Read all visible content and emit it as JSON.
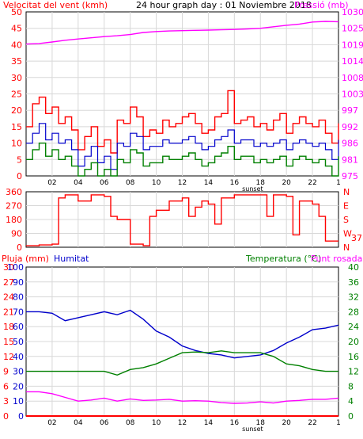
{
  "title": "24 hour graph day : 01 Noviembre 2018",
  "x_ticks": [
    "02",
    "04",
    "06",
    "08",
    "10",
    "12",
    "14",
    "16",
    "18",
    "20",
    "22",
    "1"
  ],
  "sunset_label": "sunset",
  "colors": {
    "wind_gust": "#ff0000",
    "wind_avg": "#0000cc",
    "wind_min": "#008000",
    "pressure": "#ff00ff",
    "direction": "#ff0000",
    "humidity": "#0000cc",
    "temperature": "#008000",
    "dewpoint": "#ff00ff",
    "rain": "#ff0000",
    "grid": "#d8d8d8",
    "left_axis_red": "#ff0000",
    "left_axis_blue": "#0000cc",
    "right_axis_magenta": "#ff00ff",
    "right_axis_green": "#008000"
  },
  "chart_data": [
    {
      "type": "line",
      "panel": "wind_pressure",
      "left_label": "Velocitat del vent (kmh)",
      "right_label": "Pressió (mb)",
      "ylim_left": [
        0,
        50
      ],
      "left_ticks": [
        "0",
        "5",
        "10",
        "15",
        "20",
        "25",
        "30",
        "35",
        "40",
        "45",
        "50"
      ],
      "ylim_right": [
        975,
        1030
      ],
      "right_ticks": [
        "975",
        "981",
        "986",
        "992",
        "997",
        "1003",
        "1008",
        "1014",
        "1019",
        "1025",
        "1030"
      ],
      "x_hours": [
        0,
        24
      ],
      "series": [
        {
          "key": "pressure",
          "axis": "right",
          "x": [
            0,
            1,
            2,
            3,
            4,
            5,
            6,
            7,
            8,
            9,
            10,
            11,
            12,
            13,
            14,
            15,
            16,
            17,
            18,
            19,
            20,
            21,
            22,
            23,
            24
          ],
          "values": [
            1019.2,
            1019.4,
            1019.9,
            1020.5,
            1020.9,
            1021.3,
            1021.7,
            1022.0,
            1022.4,
            1023.1,
            1023.4,
            1023.6,
            1023.7,
            1023.8,
            1023.9,
            1024.0,
            1024.1,
            1024.3,
            1024.5,
            1025.0,
            1025.5,
            1025.9,
            1026.6,
            1026.8,
            1026.7
          ]
        },
        {
          "key": "wind_gust",
          "axis": "left",
          "x": [
            0,
            0.5,
            1,
            1.5,
            2,
            2.5,
            3,
            3.5,
            4,
            4.5,
            5,
            5.5,
            6,
            6.5,
            7,
            7.5,
            8,
            8.5,
            9,
            9.5,
            10,
            10.5,
            11,
            11.5,
            12,
            12.5,
            13,
            13.5,
            14,
            14.5,
            15,
            15.5,
            16,
            16.5,
            17,
            17.5,
            18,
            18.5,
            19,
            19.5,
            20,
            20.5,
            21,
            21.5,
            22,
            22.5,
            23,
            23.5,
            24
          ],
          "values": [
            15,
            22,
            24,
            19,
            21,
            16,
            18,
            14,
            8,
            12,
            15,
            9,
            11,
            7,
            17,
            16,
            21,
            18,
            12,
            14,
            13,
            17,
            15,
            16,
            18,
            19,
            16,
            13,
            14,
            18,
            19,
            26,
            16,
            17,
            18,
            15,
            16,
            14,
            17,
            19,
            13,
            16,
            18,
            16,
            15,
            17,
            13,
            10,
            16
          ]
        },
        {
          "key": "wind_avg",
          "axis": "left",
          "x": [
            0,
            0.5,
            1,
            1.5,
            2,
            2.5,
            3,
            3.5,
            4,
            4.5,
            5,
            5.5,
            6,
            6.5,
            7,
            7.5,
            8,
            8.5,
            9,
            9.5,
            10,
            10.5,
            11,
            11.5,
            12,
            12.5,
            13,
            13.5,
            14,
            14.5,
            15,
            15.5,
            16,
            16.5,
            17,
            17.5,
            18,
            18.5,
            19,
            19.5,
            20,
            20.5,
            21,
            21.5,
            22,
            22.5,
            23,
            23.5,
            24
          ],
          "values": [
            10,
            13,
            16,
            11,
            13,
            10,
            11,
            8,
            3,
            6,
            9,
            4,
            6,
            2,
            10,
            9,
            13,
            12,
            8,
            9,
            9,
            11,
            10,
            10,
            11,
            12,
            10,
            8,
            9,
            11,
            12,
            14,
            10,
            11,
            11,
            9,
            10,
            9,
            10,
            11,
            8,
            10,
            11,
            10,
            9,
            10,
            8,
            5,
            11
          ]
        },
        {
          "key": "wind_min",
          "axis": "left",
          "x": [
            0,
            0.5,
            1,
            1.5,
            2,
            2.5,
            3,
            3.5,
            4,
            4.5,
            5,
            5.5,
            6,
            6.5,
            7,
            7.5,
            8,
            8.5,
            9,
            9.5,
            10,
            10.5,
            11,
            11.5,
            12,
            12.5,
            13,
            13.5,
            14,
            14.5,
            15,
            15.5,
            16,
            16.5,
            17,
            17.5,
            18,
            18.5,
            19,
            19.5,
            20,
            20.5,
            21,
            21.5,
            22,
            22.5,
            23,
            23.5,
            24
          ],
          "values": [
            5,
            8,
            10,
            6,
            8,
            5,
            6,
            3,
            0,
            2,
            4,
            0,
            2,
            0,
            5,
            4,
            8,
            7,
            3,
            4,
            4,
            6,
            5,
            5,
            6,
            7,
            5,
            3,
            4,
            6,
            7,
            9,
            5,
            6,
            6,
            4,
            5,
            4,
            5,
            6,
            3,
            5,
            6,
            5,
            4,
            5,
            3,
            0,
            6
          ]
        }
      ]
    },
    {
      "type": "line",
      "panel": "direction",
      "left_ticks": [
        "0",
        "90",
        "180",
        "270",
        "360"
      ],
      "ylim_left": [
        0,
        360
      ],
      "right_ticks": [
        "N",
        "W",
        "S",
        "E",
        "N"
      ],
      "current_value": "37",
      "series": [
        {
          "key": "direction",
          "axis": "left",
          "x": [
            0,
            1,
            2,
            2.5,
            3,
            4,
            5,
            6,
            6.5,
            7,
            8,
            9,
            9.5,
            10,
            11,
            12,
            12.5,
            13,
            13.5,
            14,
            14.5,
            15,
            16,
            17,
            18,
            18.5,
            19,
            20,
            20.5,
            21,
            22,
            22.5,
            23,
            24
          ],
          "values": [
            10,
            15,
            20,
            320,
            340,
            300,
            340,
            330,
            200,
            180,
            20,
            10,
            200,
            240,
            300,
            320,
            200,
            260,
            300,
            280,
            150,
            320,
            340,
            340,
            340,
            200,
            340,
            330,
            80,
            300,
            280,
            200,
            40,
            40
          ]
        }
      ]
    },
    {
      "type": "line",
      "panel": "rain_humidity_temp",
      "left_label_rain": "Pluja (mm)",
      "left_label_hum": "Humitat",
      "right_label_temp": "Temperatura (°C)",
      "right_label_dew": "Punt rosada",
      "rain_ticks": [
        "0",
        "3",
        "6",
        "9",
        "12",
        "15",
        "18",
        "21",
        "24",
        "27",
        "30"
      ],
      "humidity_ticks": [
        "0",
        "10",
        "20",
        "30",
        "40",
        "50",
        "60",
        "70",
        "80",
        "90",
        "100"
      ],
      "ylim_humidity": [
        0,
        100
      ],
      "temp_ticks": [
        "0",
        "4",
        "8",
        "12",
        "16",
        "20",
        "24",
        "28",
        "32",
        "36",
        "40"
      ],
      "ylim_temp": [
        0,
        40
      ],
      "series": [
        {
          "key": "humidity",
          "axis": "humidity",
          "x": [
            0,
            1,
            2,
            3,
            4,
            5,
            6,
            7,
            8,
            9,
            10,
            11,
            12,
            13,
            14,
            15,
            16,
            17,
            18,
            19,
            20,
            21,
            22,
            23,
            24
          ],
          "values": [
            70,
            70,
            69,
            64,
            66,
            68,
            70,
            68,
            71,
            65,
            57,
            53,
            47,
            44,
            42,
            41,
            39,
            40,
            41,
            44,
            49,
            53,
            58,
            59,
            61
          ]
        },
        {
          "key": "temperature",
          "axis": "temp",
          "x": [
            0,
            1,
            2,
            3,
            4,
            5,
            6,
            7,
            8,
            9,
            10,
            11,
            12,
            13,
            14,
            15,
            16,
            17,
            18,
            19,
            20,
            21,
            22,
            23,
            24
          ],
          "values": [
            12,
            12,
            12,
            12,
            12,
            12,
            12,
            11,
            12.5,
            13,
            14,
            15.5,
            17,
            17.2,
            17,
            17.5,
            17,
            17,
            17,
            16,
            14,
            13.5,
            12.5,
            12,
            12
          ]
        },
        {
          "key": "dewpoint",
          "axis": "temp",
          "x": [
            0,
            1,
            2,
            3,
            4,
            5,
            6,
            7,
            8,
            9,
            10,
            11,
            12,
            13,
            14,
            15,
            16,
            17,
            18,
            19,
            20,
            21,
            22,
            23,
            24
          ],
          "values": [
            6.5,
            6.5,
            6,
            5,
            4,
            4.3,
            4.8,
            4,
            4.6,
            4.2,
            4.3,
            4.5,
            4,
            4.1,
            4,
            3.6,
            3.4,
            3.5,
            3.8,
            3.5,
            4,
            4.2,
            4.5,
            4.5,
            4.8
          ]
        },
        {
          "key": "rain",
          "axis": "rain",
          "x": [
            0,
            24
          ],
          "values": [
            0,
            0
          ]
        }
      ]
    }
  ]
}
